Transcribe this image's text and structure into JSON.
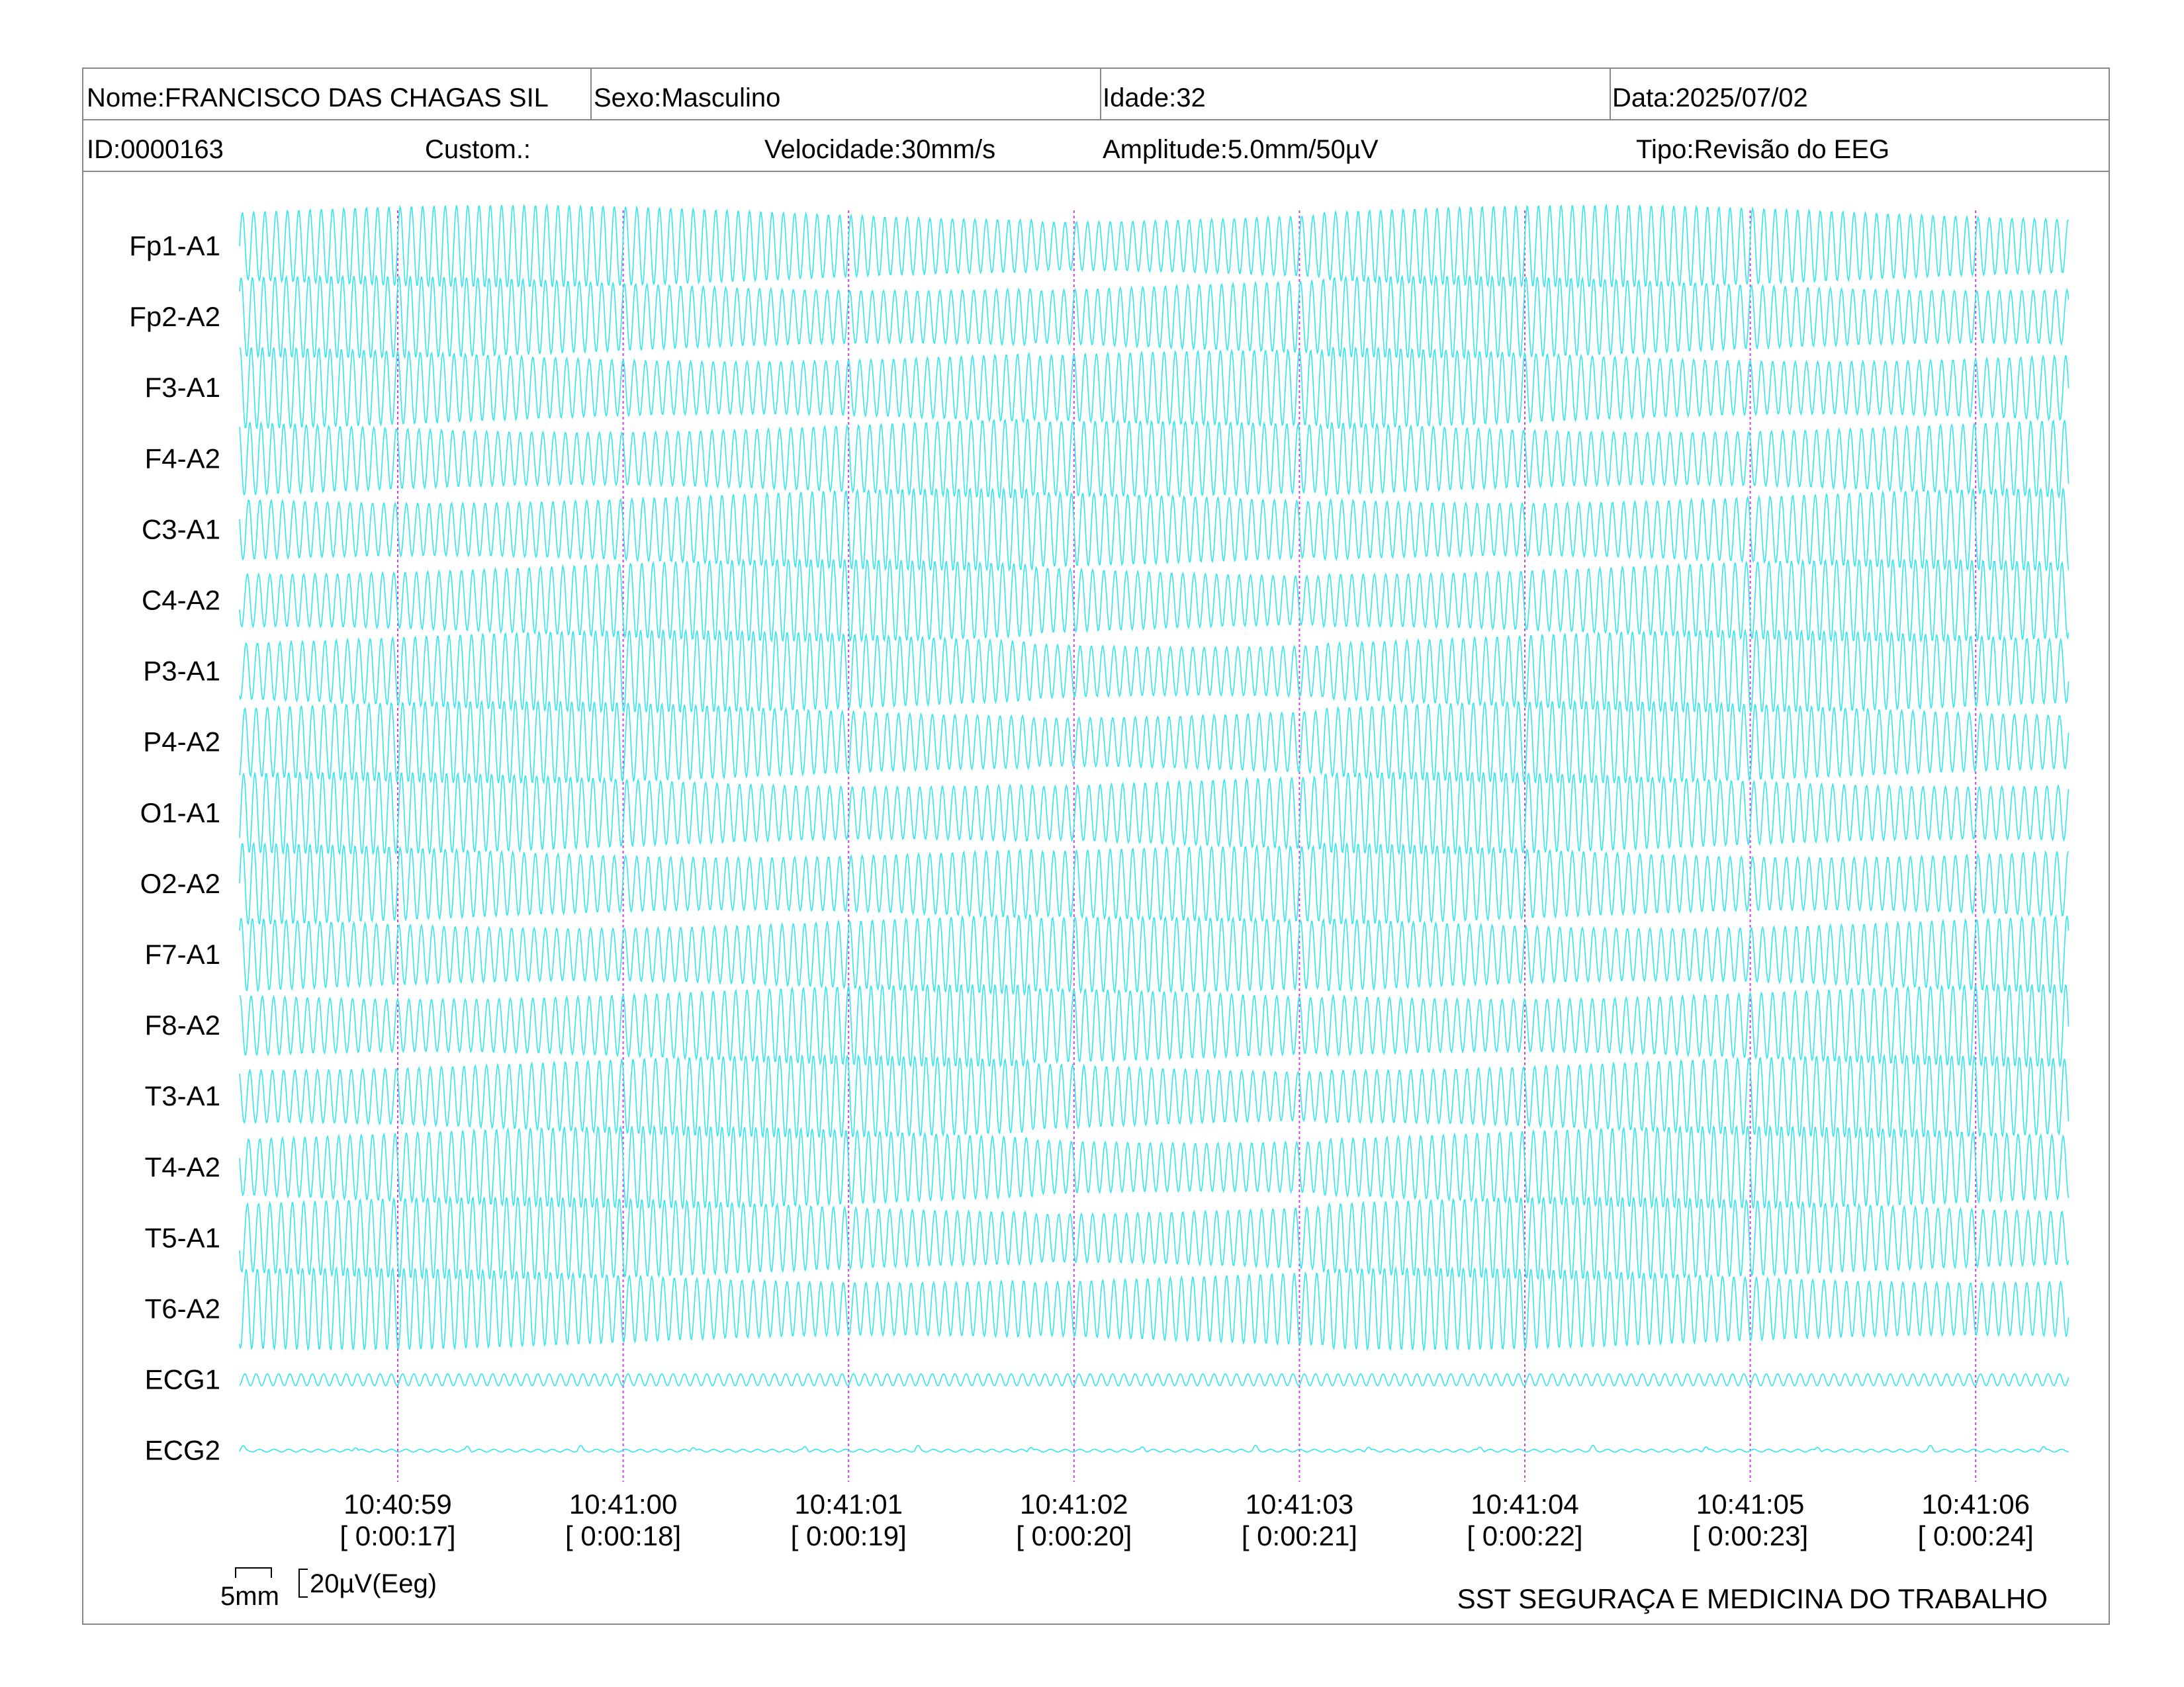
{
  "header": {
    "nome": "Nome:FRANCISCO DAS CHAGAS SIL",
    "sexo": "Sexo:Masculino",
    "idade": "Idade:32",
    "data": "Data:2025/07/02",
    "id": "ID:0000163",
    "custom": "Custom.:",
    "velocidade": "Velocidade:30mm/s",
    "amplitude": "Amplitude:5.0mm/50µV",
    "tipo": "Tipo:Revisão do EEG"
  },
  "scale": {
    "time_label": "5mm",
    "amp_label": "20µV(Eeg)"
  },
  "footer": {
    "organization": "SST SEGURAÇA E MEDICINA DO TRABALHO"
  },
  "colors": {
    "trace": "#33e6ee",
    "time_marker": "#cc44dd",
    "grid_line": "#888888"
  },
  "chart_data": {
    "type": "line",
    "channels": [
      "Fp1-A1",
      "Fp2-A2",
      "F3-A1",
      "F4-A2",
      "C3-A1",
      "C4-A2",
      "P3-A1",
      "P4-A2",
      "O1-A1",
      "O2-A2",
      "F7-A1",
      "F8-A2",
      "T3-A1",
      "T4-A2",
      "T5-A1",
      "T6-A2",
      "ECG1",
      "ECG2"
    ],
    "time_markers": [
      {
        "clock": "10:40:59",
        "elapsed": "[ 0:00:17]"
      },
      {
        "clock": "10:41:00",
        "elapsed": "[ 0:00:18]"
      },
      {
        "clock": "10:41:01",
        "elapsed": "[ 0:00:19]"
      },
      {
        "clock": "10:41:02",
        "elapsed": "[ 0:00:20]"
      },
      {
        "clock": "10:41:03",
        "elapsed": "[ 0:00:21]"
      },
      {
        "clock": "10:41:04",
        "elapsed": "[ 0:00:22]"
      },
      {
        "clock": "10:41:05",
        "elapsed": "[ 0:00:23]"
      },
      {
        "clock": "10:41:06",
        "elapsed": "[ 0:00:24]"
      }
    ],
    "eeg_frequency_hz": 60,
    "ecg_frequency_hz": 60
  }
}
